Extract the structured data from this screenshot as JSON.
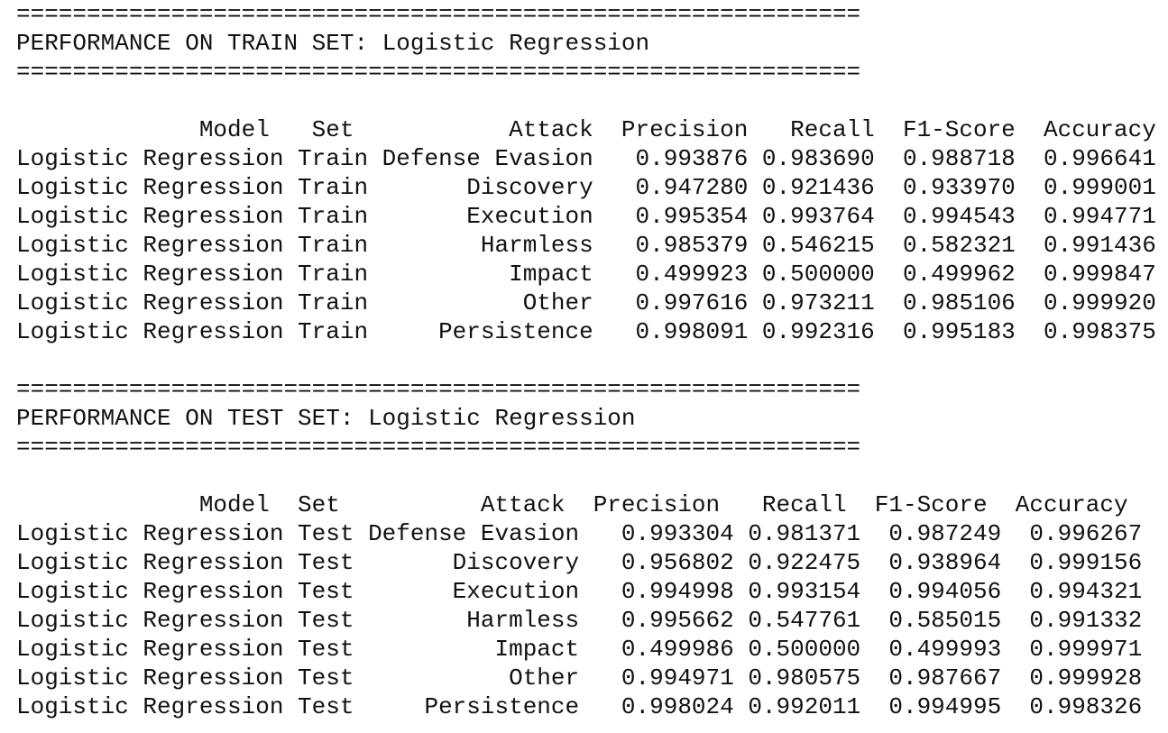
{
  "sections": [
    {
      "separator": "============================================================",
      "title": "PERFORMANCE ON TRAIN SET: Logistic Regression",
      "header": "             Model   Set           Attack  Precision   Recall  F1-Score  Accuracy",
      "rows": [
        "Logistic Regression Train Defense Evasion   0.993876 0.983690  0.988718  0.996641",
        "Logistic Regression Train       Discovery   0.947280 0.921436  0.933970  0.999001",
        "Logistic Regression Train       Execution   0.995354 0.993764  0.994543  0.994771",
        "Logistic Regression Train        Harmless   0.985379 0.546215  0.582321  0.991436",
        "Logistic Regression Train          Impact   0.499923 0.500000  0.499962  0.999847",
        "Logistic Regression Train           Other   0.997616 0.973211  0.985106  0.999920",
        "Logistic Regression Train     Persistence   0.998091 0.992316  0.995183  0.998375"
      ]
    },
    {
      "separator": "============================================================",
      "title": "PERFORMANCE ON TEST SET: Logistic Regression",
      "header": "             Model  Set          Attack  Precision   Recall  F1-Score  Accuracy",
      "rows": [
        "Logistic Regression Test Defense Evasion   0.993304 0.981371  0.987249  0.996267",
        "Logistic Regression Test       Discovery   0.956802 0.922475  0.938964  0.999156",
        "Logistic Regression Test       Execution   0.994998 0.993154  0.994056  0.994321",
        "Logistic Regression Test        Harmless   0.995662 0.547761  0.585015  0.991332",
        "Logistic Regression Test          Impact   0.499986 0.500000  0.499993  0.999971",
        "Logistic Regression Test           Other   0.994971 0.980575  0.987667  0.999928",
        "Logistic Regression Test     Persistence   0.998024 0.992011  0.994995  0.998326"
      ]
    }
  ]
}
